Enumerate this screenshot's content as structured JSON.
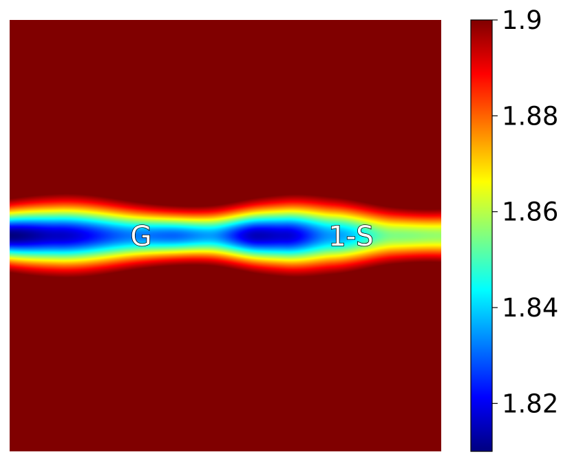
{
  "chart_data": {
    "type": "heatmap",
    "title": "",
    "xlabel": "",
    "ylabel": "",
    "colormap": "jet",
    "colorbar": {
      "range": [
        1.81,
        1.9
      ],
      "ticks": [
        1.82,
        1.84,
        1.86,
        1.88,
        1.9
      ],
      "tick_labels": [
        "1.82",
        "1.84",
        "1.86",
        "1.88",
        "1.9"
      ]
    },
    "annotations": [
      {
        "text": "G"
      },
      {
        "text": "1-S"
      }
    ],
    "background_value": 1.9,
    "minima_values": [
      1.81,
      1.84,
      1.815,
      1.855
    ],
    "grid": false
  }
}
